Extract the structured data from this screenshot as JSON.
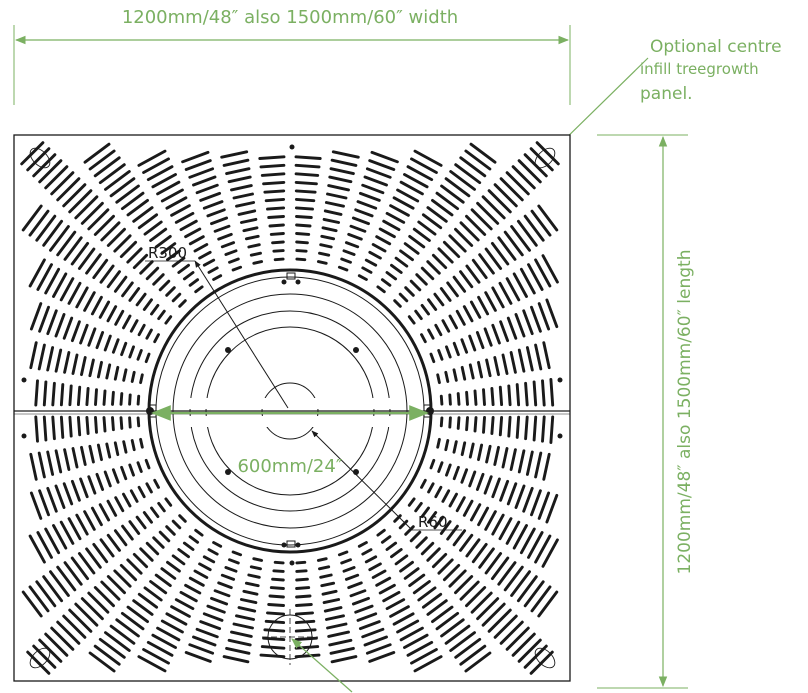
{
  "dimensions": {
    "width_label": "1200mm/48″ also 1500mm/60″ width",
    "length_label": "1200mm/48″ also 1500mm/60″  length",
    "diameter_label": "600mm/24″"
  },
  "callout": {
    "line1": "Optional centre",
    "line2": "infill treegrowth",
    "line3": "panel."
  },
  "radii": {
    "outer_label": "R300",
    "inner_label": "R60"
  },
  "colors": {
    "dimension": "#7bb062",
    "drawing": "#1a1a1a"
  }
}
